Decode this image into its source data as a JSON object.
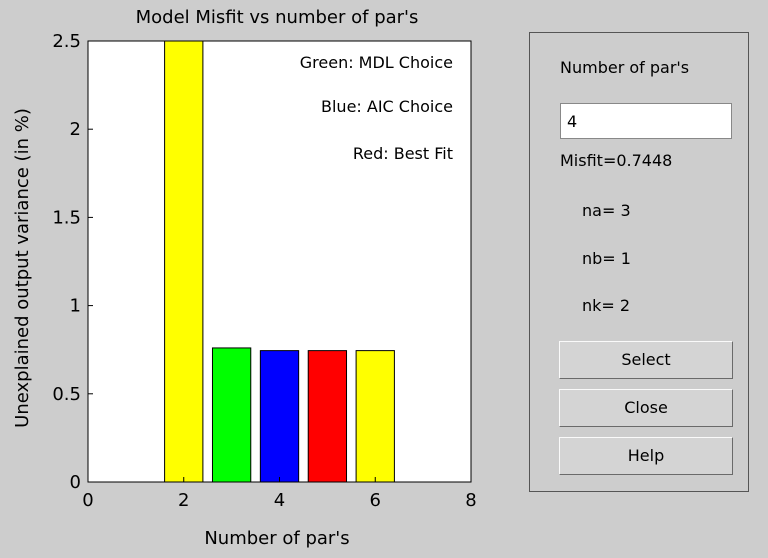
{
  "chart_data": {
    "type": "bar",
    "title": "Model Misfit vs number of par's",
    "xlabel": "Number of par's",
    "ylabel": "Unexplained output variance (in %)",
    "xlim": [
      0,
      8
    ],
    "ylim": [
      0,
      2.5
    ],
    "xticks": [
      "0",
      "2",
      "4",
      "6",
      "8"
    ],
    "yticks": [
      "0",
      "0.5",
      "1",
      "1.5",
      "2",
      "2.5"
    ],
    "x": [
      2,
      3,
      4,
      5,
      6
    ],
    "values": [
      2.5,
      0.76,
      0.7448,
      0.7448,
      0.7448
    ],
    "colors": [
      "#ffff00",
      "#00ff00",
      "#0000ff",
      "#ff0000",
      "#ffff00"
    ],
    "annotations": [
      "Green: MDL Choice",
      "Blue: AIC Choice",
      "Red: Best Fit"
    ],
    "grid": false
  },
  "panel": {
    "number_label": "Number of par's",
    "number_value": "4",
    "misfit": "Misfit=0.7448",
    "na": "na= 3",
    "nb": "nb= 1",
    "nk": "nk= 2",
    "select_label": "Select",
    "close_label": "Close",
    "help_label": "Help"
  }
}
